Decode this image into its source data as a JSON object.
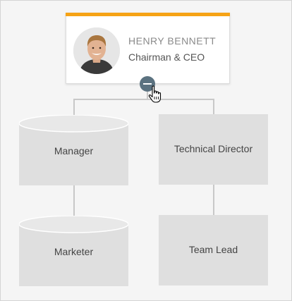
{
  "root": {
    "name": "HENRY BENNETT",
    "title": "Chairman & CEO",
    "accent_color": "#f6a316"
  },
  "children": [
    {
      "label": "Manager",
      "shape": "cylinder"
    },
    {
      "label": "Technical Director",
      "shape": "rectangle"
    }
  ],
  "grandchildren": [
    {
      "label": "Marketer",
      "shape": "cylinder"
    },
    {
      "label": "Team Lead",
      "shape": "rectangle"
    }
  ],
  "colors": {
    "node_fill": "#dfdfdf",
    "connector": "#c8c8c8",
    "collapse_button": "#5b7280",
    "background": "#f5f5f5"
  },
  "icons": {
    "collapse": "minus-circle-icon",
    "cursor": "hand-pointer-icon"
  }
}
